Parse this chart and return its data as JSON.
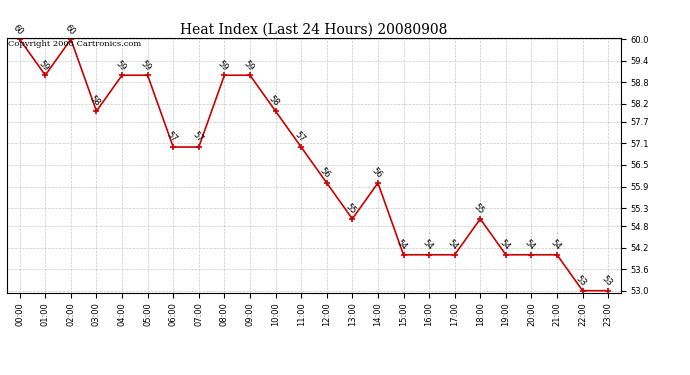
{
  "title": "Heat Index (Last 24 Hours) 20080908",
  "copyright": "Copyright 2008 Cartronics.com",
  "x_labels": [
    "00:00",
    "01:00",
    "02:00",
    "03:00",
    "04:00",
    "05:00",
    "06:00",
    "07:00",
    "08:00",
    "09:00",
    "10:00",
    "11:00",
    "12:00",
    "13:00",
    "14:00",
    "15:00",
    "16:00",
    "17:00",
    "18:00",
    "19:00",
    "20:00",
    "21:00",
    "22:00",
    "23:00"
  ],
  "y_values": [
    60,
    59,
    60,
    58,
    59,
    59,
    57,
    57,
    59,
    59,
    58,
    57,
    56,
    55,
    56,
    54,
    54,
    54,
    55,
    54,
    54,
    54,
    53,
    53
  ],
  "y_min": 53.0,
  "y_max": 60.0,
  "y_ticks": [
    53.0,
    53.6,
    54.2,
    54.8,
    55.3,
    55.9,
    56.5,
    57.1,
    57.7,
    58.2,
    58.8,
    59.4,
    60.0
  ],
  "line_color": "#cc0000",
  "marker_color": "#cc0000",
  "bg_color": "#ffffff",
  "grid_color": "#bbbbbb",
  "title_fontsize": 10,
  "label_fontsize": 6,
  "tick_fontsize": 6,
  "copyright_fontsize": 6
}
